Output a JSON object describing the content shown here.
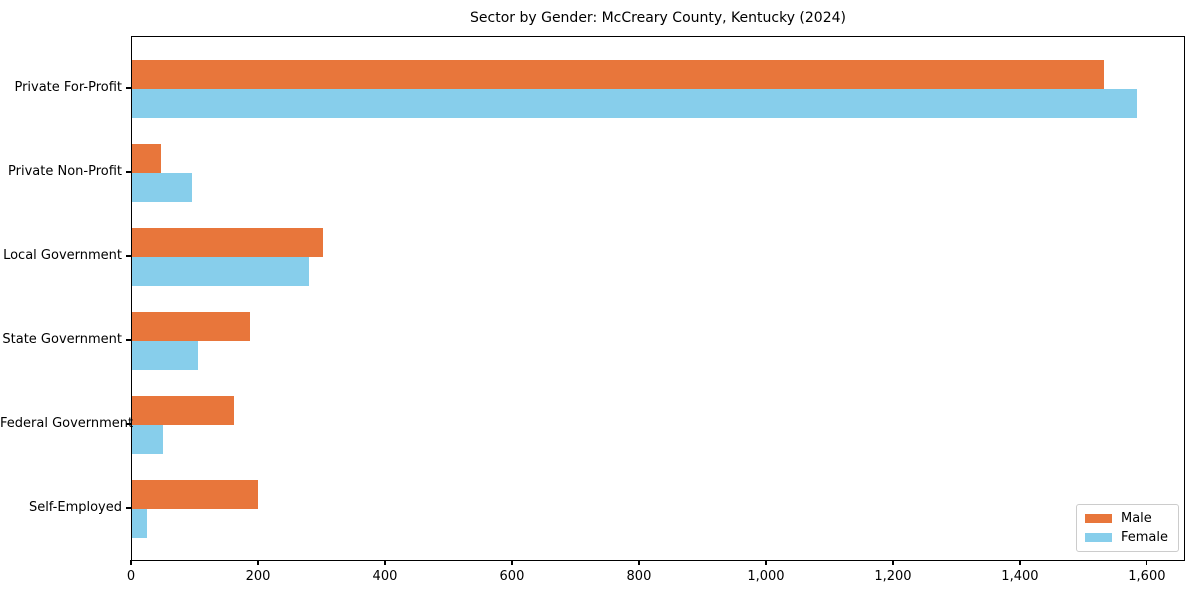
{
  "chart_data": {
    "type": "bar",
    "orientation": "horizontal",
    "title": "Sector by Gender: McCreary County, Kentucky (2024)",
    "categories": [
      "Private For-Profit",
      "Private Non-Profit",
      "Local Government",
      "State Government",
      "Federal Government",
      "Self-Employed"
    ],
    "series": [
      {
        "name": "Male",
        "color": "#e8763b",
        "values": [
          1531,
          46,
          300,
          186,
          161,
          199
        ]
      },
      {
        "name": "Female",
        "color": "#87ceeb",
        "values": [
          1582,
          94,
          279,
          104,
          49,
          24
        ]
      }
    ],
    "xlabel": "",
    "ylabel": "",
    "xlim": [
      0,
      1660
    ],
    "xticks": [
      0,
      200,
      400,
      600,
      800,
      1000,
      1200,
      1400,
      1600
    ],
    "xtick_labels": [
      "0",
      "200",
      "400",
      "600",
      "800",
      "1,000",
      "1,200",
      "1,400",
      "1,600"
    ],
    "grid": false,
    "legend": {
      "position": "lower right",
      "entries": [
        "Male",
        "Female"
      ]
    }
  },
  "colors": {
    "male": "#e8763b",
    "female": "#87ceeb",
    "axis": "#000000",
    "legend_border": "#cccccc",
    "background": "#ffffff"
  }
}
